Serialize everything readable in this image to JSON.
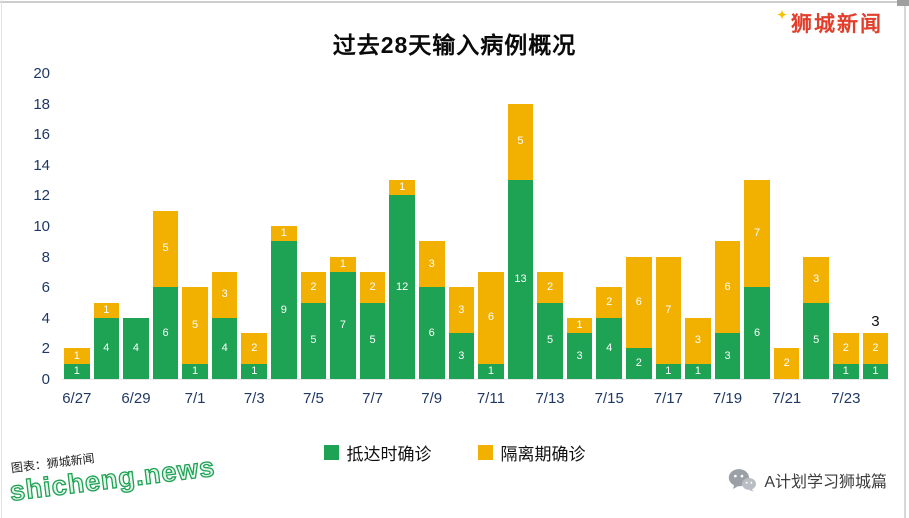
{
  "page": {
    "title": "过去28天输入病例概况",
    "logo": "狮城新闻",
    "watermark_caption": "图表：狮城新闻",
    "watermark_site": "shicheng.news",
    "credit": "A计划学习狮城篇"
  },
  "colors": {
    "green": "#1ea254",
    "yellow": "#f2b100",
    "brand-red": "#e23e2b",
    "axis-text": "#1f3864",
    "watermark-green": "#1ea254"
  },
  "chart_data": {
    "type": "bar",
    "stacked": true,
    "title": "过去28天输入病例概况",
    "categories": [
      "6/27",
      "6/28",
      "6/29",
      "6/30",
      "7/1",
      "7/2",
      "7/3",
      "7/4",
      "7/5",
      "7/6",
      "7/7",
      "7/8",
      "7/9",
      "7/10",
      "7/11",
      "7/12",
      "7/13",
      "7/14",
      "7/15",
      "7/16",
      "7/17",
      "7/18",
      "7/19",
      "7/20",
      "7/21",
      "7/22",
      "7/23",
      "7/24"
    ],
    "series": [
      {
        "name": "抵达时确诊",
        "color": "#1ea254",
        "values": [
          1,
          4,
          4,
          6,
          1,
          4,
          1,
          9,
          5,
          7,
          5,
          12,
          6,
          3,
          1,
          13,
          5,
          3,
          4,
          2,
          1,
          1,
          3,
          6,
          0,
          5,
          1,
          1
        ]
      },
      {
        "name": "隔离期确诊",
        "color": "#f2b100",
        "values": [
          1,
          1,
          0,
          5,
          5,
          3,
          2,
          1,
          2,
          1,
          2,
          1,
          3,
          3,
          6,
          5,
          2,
          1,
          2,
          6,
          7,
          3,
          6,
          7,
          2,
          3,
          2,
          2
        ]
      }
    ],
    "totals": [
      2,
      5,
      4,
      11,
      6,
      7,
      3,
      10,
      7,
      8,
      7,
      13,
      9,
      6,
      7,
      18,
      7,
      4,
      6,
      8,
      8,
      4,
      9,
      13,
      2,
      8,
      3,
      3
    ],
    "ylim": [
      0,
      20
    ],
    "ytick_step": 2,
    "xtick_every": 2,
    "grid": false,
    "legend_position": "bottom",
    "bar_value_labels": true,
    "last_bar_total_label": "3"
  }
}
